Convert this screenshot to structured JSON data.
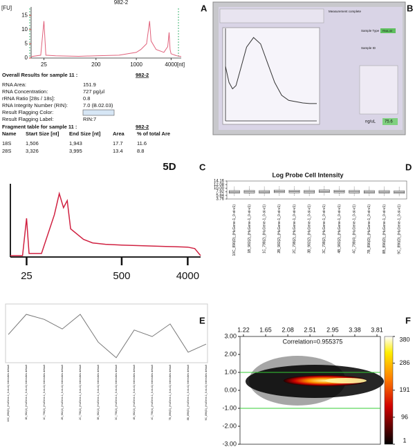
{
  "panel_labels": [
    "A",
    "B",
    "C",
    "D",
    "E",
    "F"
  ],
  "report": {
    "overall_title": "Overall Results for sample 11 :",
    "sample": "982-2",
    "rows": [
      {
        "label": "RNA Area:",
        "value": "151.9"
      },
      {
        "label": "RNA Concentration:",
        "value": "727 pg/µl"
      },
      {
        "label": "rRNA Ratio [28s / 18s]:",
        "value": "0.8"
      },
      {
        "label": "RNA Integrity Number (RIN):",
        "value": "7.0  (B.02.03)"
      },
      {
        "label": "Result Flagging Color:"
      },
      {
        "label": "Result Flagging Label:",
        "value": "RIN:7"
      }
    ],
    "fragment_title": "Fragment table for sample 11 :",
    "fragment_sample": "982-2",
    "fragment_headers": [
      "Name",
      "Start Size [nt]",
      "End Size [nt]",
      "Area",
      "% of total Are"
    ],
    "fragment_rows": [
      [
        "18S",
        "1,506",
        "1,943",
        "17.7",
        "11.6"
      ],
      [
        "28S",
        "3,326",
        "3,995",
        "13.4",
        "8.8"
      ]
    ]
  },
  "screen": {
    "status": "Measurement complete",
    "sample_type": "Sample Type",
    "sample_type_value": "RNA-40",
    "sample_id": "Sample ID",
    "unit": "ng/uL",
    "reading": "75.6"
  },
  "chart_data": [
    {
      "type": "line",
      "title": "982-2",
      "y_label": "[FU]",
      "x_label": "[nt]",
      "xscale": "log",
      "xlim": [
        15,
        6000
      ],
      "ylim": [
        0,
        17
      ],
      "xticks": [
        25,
        200,
        1000,
        4000
      ],
      "yticks": [
        0,
        5,
        10,
        15
      ],
      "series": [
        {
          "color": "#e0607a",
          "x": [
            15,
            22,
            25,
            27,
            40,
            100,
            200,
            500,
            1000,
            1200,
            1506,
            1700,
            1800,
            2200,
            3000,
            3500,
            3700,
            3850,
            4000,
            5000,
            6000
          ],
          "values": [
            0.5,
            1,
            13,
            1,
            0.8,
            0.6,
            0.8,
            1,
            2,
            3,
            5,
            13,
            6,
            3,
            2,
            4,
            9,
            3,
            1.5,
            0.8,
            0.5
          ]
        }
      ]
    },
    {
      "type": "line",
      "title": "5D",
      "xscale": "log",
      "xlim": [
        15,
        6000
      ],
      "ylim": [
        0,
        100
      ],
      "xticks": [
        25,
        500,
        4000
      ],
      "series": [
        {
          "color": "#d02040",
          "x": [
            15,
            22,
            25,
            27,
            40,
            60,
            70,
            80,
            90,
            100,
            150,
            200,
            300,
            500,
            1000,
            2000,
            4000,
            5000,
            6000
          ],
          "values": [
            2,
            2,
            55,
            5,
            5,
            60,
            90,
            70,
            80,
            40,
            25,
            20,
            18,
            17,
            16,
            15,
            14,
            12,
            2
          ]
        }
      ]
    },
    {
      "type": "line",
      "xlim": [
        220,
        350
      ],
      "ylim": [
        -0.3,
        1.1
      ],
      "series": [
        {
          "color": "#333333",
          "x": [
            220,
            225,
            230,
            235,
            240,
            250,
            260,
            270,
            280,
            290,
            300,
            310,
            320,
            330,
            340,
            350
          ],
          "values": [
            0.55,
            0.3,
            0.2,
            0.25,
            0.45,
            0.85,
            1.0,
            0.9,
            0.6,
            0.3,
            0.1,
            0.02,
            0.0,
            -0.02,
            -0.03,
            -0.03
          ]
        }
      ]
    },
    {
      "type": "box",
      "title": "Log Probe Cell Intensity",
      "ylim": [
        3.76,
        14.16
      ],
      "yticks": [
        14.16,
        12.08,
        {
          "value": 10,
          "label": "10.00"
        },
        7.92,
        5.84,
        3.76
      ],
      "color": "#444444",
      "categories": [
        "10C_896(D)_(HuGene-1_0-st-v1)",
        "1B_982(2)_(HuGene-1_0-st-v1)",
        "1C_798(2)_(HuGene-1_0-st-v1)",
        "2B_982(2)_(HuGene-1_0-st-v1)",
        "2C_798(2)_(HuGene-1_0-st-v1)",
        "3B_982(2)_(HuGene-1_0-st-v1)",
        "3C_798(2)_(HuGene-1_0-st-v1)",
        "4B_982(2)_(HuGene-1_0-st-v1)",
        "4C_798(4)_(HuGene-1_0-st-v1)",
        "7B_896(D)_(HuGene-1_0-st-v1)",
        "8B_896(D)_(HuGene-1_0-st-v1)",
        "9C_896(D)_(HuGene-1_0-st-v1)"
      ],
      "values": [
        [
          5.6,
          7.1,
          7.8,
          8.6,
          11.0
        ],
        [
          5.7,
          7.2,
          7.9,
          8.7,
          11.2
        ],
        [
          5.6,
          7.1,
          7.8,
          8.6,
          11.0
        ],
        [
          5.8,
          7.4,
          8.1,
          8.9,
          11.4
        ],
        [
          5.7,
          7.3,
          8.0,
          8.8,
          11.2
        ],
        [
          5.6,
          7.2,
          7.9,
          8.7,
          11.1
        ],
        [
          5.9,
          7.5,
          8.2,
          9.0,
          11.5
        ],
        [
          5.7,
          7.3,
          8.0,
          8.8,
          11.2
        ],
        [
          5.6,
          7.2,
          7.9,
          8.7,
          11.1
        ],
        [
          5.6,
          7.1,
          7.8,
          8.6,
          11.0
        ],
        [
          5.6,
          7.1,
          7.8,
          8.6,
          11.0
        ],
        [
          5.5,
          7.0,
          7.7,
          8.5,
          10.9
        ]
      ]
    },
    {
      "type": "line",
      "ylim": [
        0,
        1
      ],
      "color": "#777777",
      "categories": [
        "10C_896(D)_(HuGene-1_0-st-v1) Intensities default",
        "1B_982(2)_(HuGene-1_0-st-v1) Intensities default",
        "1C_798(2)_(HuGene-1_0-st-v1) Intensities default",
        "2B_982(2)_(HuGene-1_0-st-v1) Intensities default",
        "2C_798(2)_(HuGene-1_0-st-v1) Intensities default",
        "3B_982(2)_(HuGene-1_0-st-v1) Intensities default",
        "3C_798(2)_(HuGene-1_0-st-v1) Intensities default",
        "4B_982(2)_(HuGene-1_0-st-v1) Intensities default",
        "4C_798(4)_(HuGene-1_0-st-v1) Intensities default",
        "7B_896(D)_(HuGene-1_0-st-v1) Intensities default",
        "8B_896(D)_(HuGene-1_0-st-v1) Intensities default",
        "9C_896(D)_(HuGene-1_0-st-v1) Intensities default"
      ],
      "values": [
        0.49,
        0.89,
        0.79,
        0.6,
        0.89,
        0.34,
        0.03,
        0.58,
        0.45,
        0.7,
        0.14,
        0.3
      ]
    },
    {
      "type": "density",
      "title": "Correlation=0.955375",
      "xlim": [
        1.22,
        3.81
      ],
      "xticks": [
        1.22,
        1.65,
        2.08,
        2.51,
        2.95,
        3.38,
        3.81
      ],
      "ylim": [
        -3,
        3
      ],
      "yticks": [
        {
          "value": 3,
          "label": "3.00"
        },
        {
          "value": 2,
          "label": "2.00"
        },
        {
          "value": 1,
          "label": "1.00"
        },
        {
          "value": 0,
          "label": "0.00"
        },
        {
          "value": -1,
          "label": "-1.00"
        },
        {
          "value": -2,
          "label": "-2.00"
        },
        {
          "value": -3,
          "label": "-3.00"
        }
      ],
      "hlines": [
        1,
        -1
      ],
      "hline_color": "#33cc33",
      "clim": [
        1,
        380
      ],
      "cticks": [
        380,
        286,
        191,
        96,
        1
      ]
    }
  ]
}
